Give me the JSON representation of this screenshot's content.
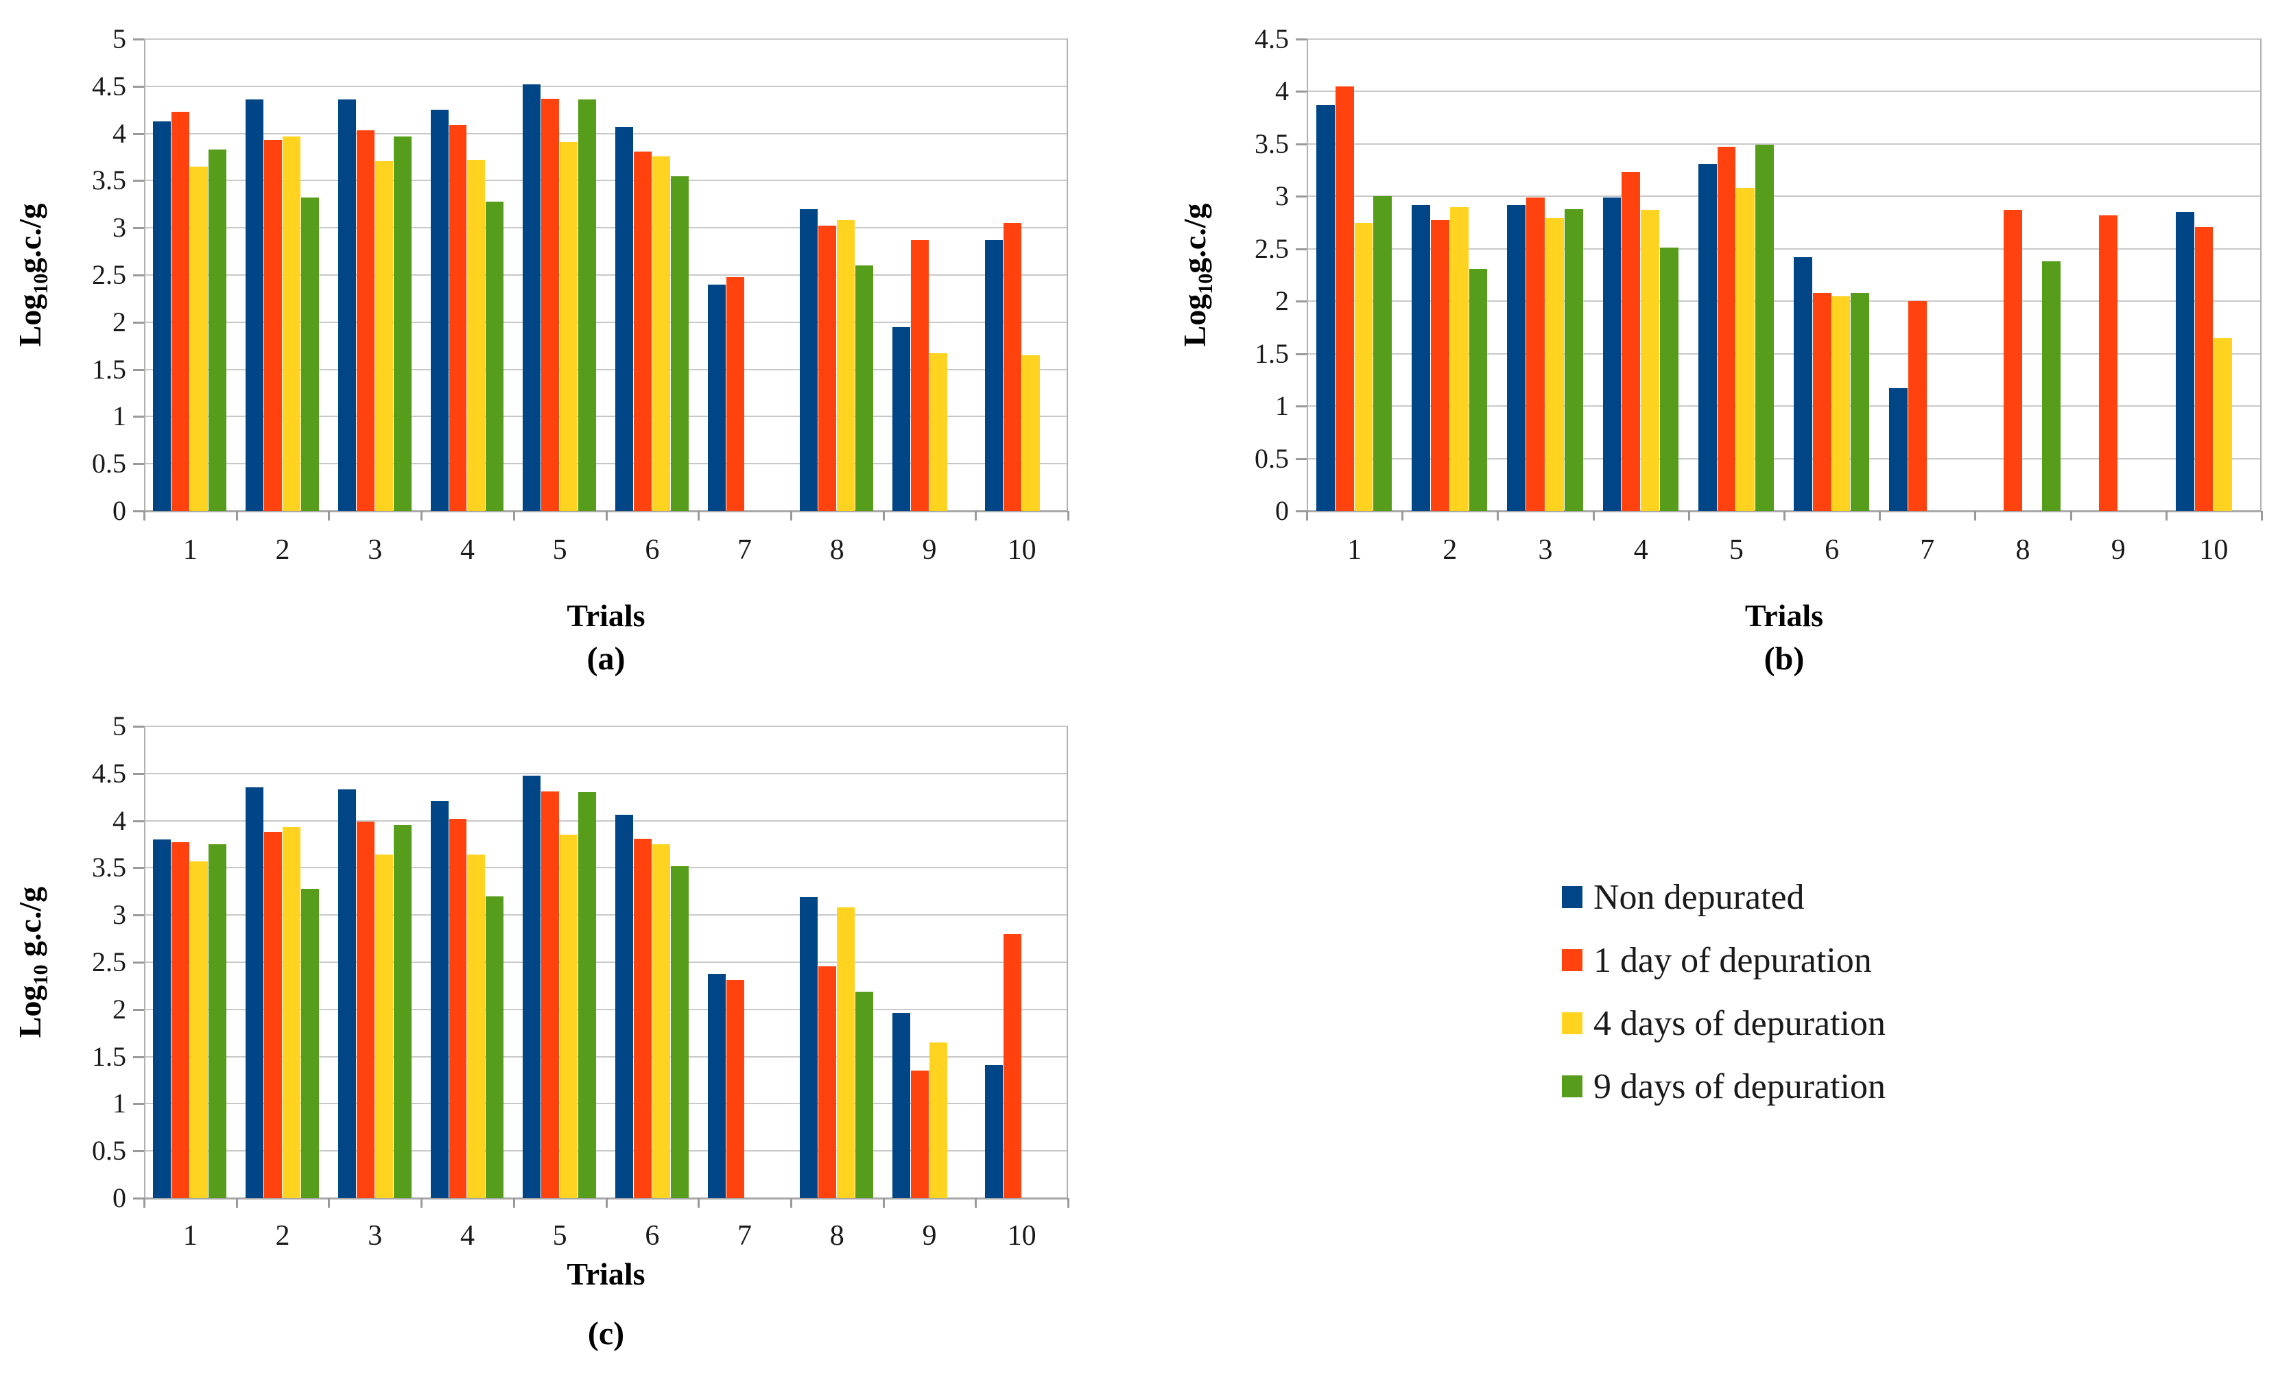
{
  "figure": {
    "background": "#ffffff",
    "panel_captions": {
      "a": "(a)",
      "b": "(b)",
      "c": "(c)"
    }
  },
  "colors": {
    "non_depurated": "#004586",
    "day1": "#FF420E",
    "day4": "#FFD320",
    "day9": "#579D1C",
    "gridline": "#c9c9c9",
    "axis": "#a8a8a8"
  },
  "legend": {
    "position": "right-middle",
    "items": [
      {
        "label": "Non depurated",
        "color": "#004586"
      },
      {
        "label": "1 day of depuration",
        "color": "#FF420E"
      },
      {
        "label": "4 days of depuration",
        "color": "#FFD320"
      },
      {
        "label": "9 days of depuration",
        "color": "#579D1C"
      }
    ]
  },
  "chart_data": [
    {
      "id": "a",
      "type": "bar",
      "title": "",
      "caption": "(a)",
      "xlabel": "Trials",
      "ylabel": {
        "prefix": "Log",
        "sub": "10",
        "rest": "g.c./g"
      },
      "ylim": [
        0,
        5
      ],
      "ytick_step": 0.5,
      "yticks": [
        "0",
        "0.5",
        "1",
        "1.5",
        "2",
        "2.5",
        "3",
        "3.5",
        "4",
        "4.5",
        "5"
      ],
      "grid": true,
      "legend_shown": false,
      "categories": [
        "1",
        "2",
        "3",
        "4",
        "5",
        "6",
        "7",
        "8",
        "9",
        "10"
      ],
      "series": [
        {
          "name": "Non depurated",
          "color": "#004586",
          "values": [
            4.13,
            4.36,
            4.36,
            4.25,
            4.52,
            4.07,
            2.4,
            3.2,
            1.95,
            2.87
          ]
        },
        {
          "name": "1 day of depuration",
          "color": "#FF420E",
          "values": [
            4.23,
            3.93,
            4.03,
            4.09,
            4.37,
            3.81,
            2.48,
            3.02,
            2.87,
            3.05
          ]
        },
        {
          "name": "4 days of depuration",
          "color": "#FFD320",
          "values": [
            3.65,
            3.97,
            3.71,
            3.72,
            3.91,
            3.76,
            null,
            3.08,
            1.67,
            1.65
          ]
        },
        {
          "name": "9 days of depuration",
          "color": "#579D1C",
          "values": [
            3.83,
            3.32,
            3.97,
            3.28,
            4.36,
            3.55,
            null,
            2.6,
            null,
            null
          ]
        }
      ]
    },
    {
      "id": "b",
      "type": "bar",
      "title": "",
      "caption": "(b)",
      "xlabel": "Trials",
      "ylabel": {
        "prefix": "Log",
        "sub": "10",
        "rest": "g.c./g"
      },
      "ylim": [
        0,
        4.5
      ],
      "ytick_step": 0.5,
      "yticks": [
        "0",
        "0.5",
        "1",
        "1.5",
        "2",
        "2.5",
        "3",
        "3.5",
        "4",
        "4.5"
      ],
      "grid": true,
      "legend_shown": false,
      "categories": [
        "1",
        "2",
        "3",
        "4",
        "5",
        "6",
        "7",
        "8",
        "9",
        "10"
      ],
      "series": [
        {
          "name": "Non depurated",
          "color": "#004586",
          "values": [
            3.87,
            2.92,
            2.92,
            2.99,
            3.31,
            2.42,
            1.17,
            null,
            null,
            2.85
          ]
        },
        {
          "name": "1 day of depuration",
          "color": "#FF420E",
          "values": [
            4.05,
            2.77,
            2.99,
            3.23,
            3.47,
            2.08,
            2.0,
            2.87,
            2.82,
            2.71
          ]
        },
        {
          "name": "4 days of depuration",
          "color": "#FFD320",
          "values": [
            2.75,
            2.9,
            2.79,
            2.87,
            3.08,
            2.05,
            null,
            null,
            null,
            1.65
          ]
        },
        {
          "name": "9 days of depuration",
          "color": "#579D1C",
          "values": [
            3.0,
            2.31,
            2.88,
            2.51,
            3.49,
            2.08,
            null,
            2.38,
            null,
            null
          ]
        }
      ]
    },
    {
      "id": "c",
      "type": "bar",
      "title": "",
      "caption": "(c)",
      "xlabel": "Trials",
      "ylabel": {
        "prefix": "Log",
        "sub": "10",
        "rest": " g.c./g"
      },
      "ylim": [
        0,
        5
      ],
      "ytick_step": 0.5,
      "yticks": [
        "0",
        "0.5",
        "1",
        "1.5",
        "2",
        "2.5",
        "3",
        "3.5",
        "4",
        "4.5",
        "5"
      ],
      "grid": true,
      "legend_shown": false,
      "categories": [
        "1",
        "2",
        "3",
        "4",
        "5",
        "6",
        "7",
        "8",
        "9",
        "10"
      ],
      "series": [
        {
          "name": "Non depurated",
          "color": "#004586",
          "values": [
            3.8,
            4.35,
            4.33,
            4.21,
            4.48,
            4.06,
            2.38,
            3.19,
            1.96,
            1.41
          ]
        },
        {
          "name": "1 day of depuration",
          "color": "#FF420E",
          "values": [
            3.77,
            3.88,
            3.99,
            4.02,
            4.31,
            3.81,
            2.31,
            2.46,
            1.35,
            2.8
          ]
        },
        {
          "name": "4 days of depuration",
          "color": "#FFD320",
          "values": [
            3.57,
            3.93,
            3.64,
            3.64,
            3.85,
            3.75,
            null,
            3.08,
            1.65,
            null
          ]
        },
        {
          "name": "9 days of depuration",
          "color": "#579D1C",
          "values": [
            3.75,
            3.28,
            3.95,
            3.2,
            4.3,
            3.52,
            null,
            2.19,
            null,
            null
          ]
        }
      ]
    }
  ]
}
